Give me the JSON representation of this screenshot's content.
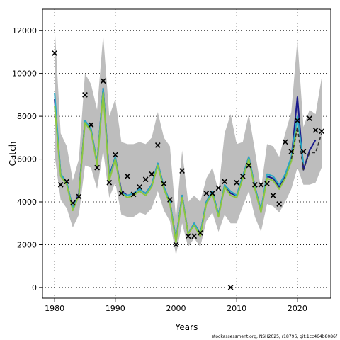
{
  "chart_data": {
    "type": "line",
    "xlabel": "Years",
    "ylabel": "Catch",
    "xlim": [
      1978,
      2025.5
    ],
    "ylim": [
      -500,
      13000
    ],
    "x_ticks": [
      1980,
      1990,
      2000,
      2010,
      2020
    ],
    "y_ticks": [
      0,
      2000,
      4000,
      6000,
      8000,
      10000,
      12000
    ],
    "grid": true,
    "footer": "stockassessment.org, NSH2025, r18796, git:1cc464b8086f",
    "band": {
      "years": [
        1980,
        1981,
        1982,
        1983,
        1984,
        1985,
        1986,
        1987,
        1988,
        1989,
        1990,
        1991,
        1992,
        1993,
        1994,
        1995,
        1996,
        1997,
        1998,
        1999,
        2000,
        2001,
        2002,
        2003,
        2004,
        2005,
        2006,
        2007,
        2008,
        2009,
        2010,
        2011,
        2012,
        2013,
        2014,
        2015,
        2016,
        2017,
        2018,
        2019,
        2020,
        2021,
        2022,
        2023,
        2024
      ],
      "lower": [
        6200,
        4100,
        3700,
        2800,
        3400,
        5700,
        5600,
        4600,
        6400,
        4200,
        4900,
        3400,
        3300,
        3300,
        3500,
        3400,
        3700,
        4500,
        3600,
        3100,
        1500,
        3000,
        1900,
        2300,
        1900,
        3100,
        3500,
        2600,
        3400,
        3000,
        3000,
        3800,
        4500,
        3300,
        2600,
        3900,
        3800,
        3500,
        4000,
        4600,
        5600,
        4800,
        4800,
        4900,
        5600
      ],
      "upper": [
        12300,
        7200,
        6600,
        5000,
        6000,
        10000,
        9500,
        8300,
        11800,
        8000,
        8800,
        6800,
        6700,
        6700,
        6800,
        6700,
        7000,
        8200,
        7000,
        6600,
        3200,
        6400,
        4000,
        4300,
        4000,
        5100,
        5600,
        4500,
        7200,
        8100,
        6700,
        6800,
        8100,
        6400,
        4600,
        6700,
        6600,
        6100,
        7200,
        8200,
        11600,
        7500,
        8300,
        8100,
        9800
      ]
    },
    "series": [
      {
        "color": "#1a1a8c",
        "x": [
          1980,
          1981,
          1982,
          1983,
          1984,
          1985,
          1986,
          1987,
          1988,
          1989,
          1990,
          1991,
          1992,
          1993,
          1994,
          1995,
          1996,
          1997,
          1998,
          1999,
          2000,
          2001,
          2002,
          2003,
          2004,
          2005,
          2006,
          2007,
          2008,
          2009,
          2010,
          2011,
          2012,
          2013,
          2014,
          2015,
          2016,
          2017,
          2018,
          2019,
          2020,
          2021,
          2022,
          2023
        ],
        "y": [
          8800,
          5300,
          4900,
          3700,
          4400,
          7800,
          7400,
          5800,
          9300,
          5200,
          6100,
          4500,
          4300,
          4400,
          4600,
          4400,
          4800,
          5800,
          4700,
          4000,
          2200,
          4300,
          2500,
          3000,
          2500,
          4000,
          4500,
          3400,
          4700,
          4400,
          4300,
          5200,
          6100,
          4700,
          3600,
          5200,
          5100,
          4700,
          5200,
          6000,
          8900,
          5500,
          6400,
          6900
        ]
      },
      {
        "color": "#2aa8c4",
        "x": [
          1980,
          1981,
          1982,
          1983,
          1984,
          1985,
          1986,
          1987,
          1988,
          1989,
          1990,
          1991,
          1992,
          1993,
          1994,
          1995,
          1996,
          1997,
          1998,
          1999,
          2000,
          2001,
          2002,
          2003,
          2004,
          2005,
          2006,
          2007,
          2008,
          2009,
          2010,
          2011,
          2012,
          2013,
          2014,
          2015,
          2016,
          2017,
          2018,
          2019,
          2020,
          2021
        ],
        "y": [
          9100,
          5300,
          4900,
          3700,
          4300,
          7800,
          7400,
          5800,
          9300,
          5100,
          6100,
          4400,
          4300,
          4400,
          4600,
          4400,
          4800,
          5800,
          4700,
          4000,
          2200,
          4300,
          2500,
          3000,
          2500,
          4000,
          4500,
          3400,
          4800,
          4500,
          4300,
          5200,
          6100,
          4700,
          3600,
          5300,
          5200,
          4800,
          5300,
          6100,
          8000,
          5800
        ]
      },
      {
        "color": "#8cc63f",
        "x": [
          1980,
          1981,
          1982,
          1983,
          1984,
          1985,
          1986,
          1987,
          1988,
          1989,
          1990,
          1991,
          1992,
          1993,
          1994,
          1995,
          1996,
          1997,
          1998,
          1999,
          2000,
          2001,
          2002,
          2003,
          2004,
          2005,
          2006,
          2007,
          2008,
          2009,
          2010,
          2011,
          2012,
          2013,
          2014,
          2015,
          2016,
          2017,
          2018,
          2019,
          2020
        ],
        "y": [
          8500,
          5200,
          4800,
          3600,
          4300,
          7700,
          7300,
          5700,
          9100,
          5000,
          6000,
          4400,
          4200,
          4300,
          4500,
          4300,
          4700,
          5700,
          4600,
          3900,
          2100,
          4200,
          2500,
          2900,
          2400,
          3900,
          4400,
          3300,
          4700,
          4300,
          4200,
          5100,
          6000,
          4600,
          3500,
          5100,
          5000,
          4600,
          5100,
          5900,
          7500
        ]
      },
      {
        "color": "#333333",
        "dashed": true,
        "x": [
          2019,
          2020,
          2021,
          2022,
          2023,
          2024
        ],
        "y": [
          6000,
          7500,
          5500,
          6300,
          6300,
          7200
        ]
      }
    ],
    "observations": {
      "x": [
        1980,
        1981,
        1982,
        1983,
        1984,
        1985,
        1986,
        1987,
        1988,
        1989,
        1990,
        1991,
        1992,
        1993,
        1994,
        1995,
        1996,
        1997,
        1998,
        1999,
        2000,
        2001,
        2002,
        2003,
        2004,
        2005,
        2006,
        2007,
        2008,
        2009,
        2010,
        2011,
        2012,
        2013,
        2014,
        2015,
        2016,
        2017,
        2018,
        2019,
        2020,
        2021,
        2022,
        2023,
        2024
      ],
      "y": [
        10950,
        4800,
        4950,
        3950,
        4250,
        9000,
        7600,
        5600,
        9650,
        4900,
        6200,
        4400,
        5200,
        4350,
        4700,
        5050,
        5300,
        6650,
        4850,
        4100,
        2000,
        5450,
        2400,
        2400,
        2550,
        4400,
        4400,
        4650,
        4950,
        0,
        4900,
        5200,
        5700,
        4800,
        4800,
        4850,
        4300,
        3900,
        6800,
        6350,
        7800,
        6350,
        7900,
        7350,
        7300
      ]
    }
  }
}
